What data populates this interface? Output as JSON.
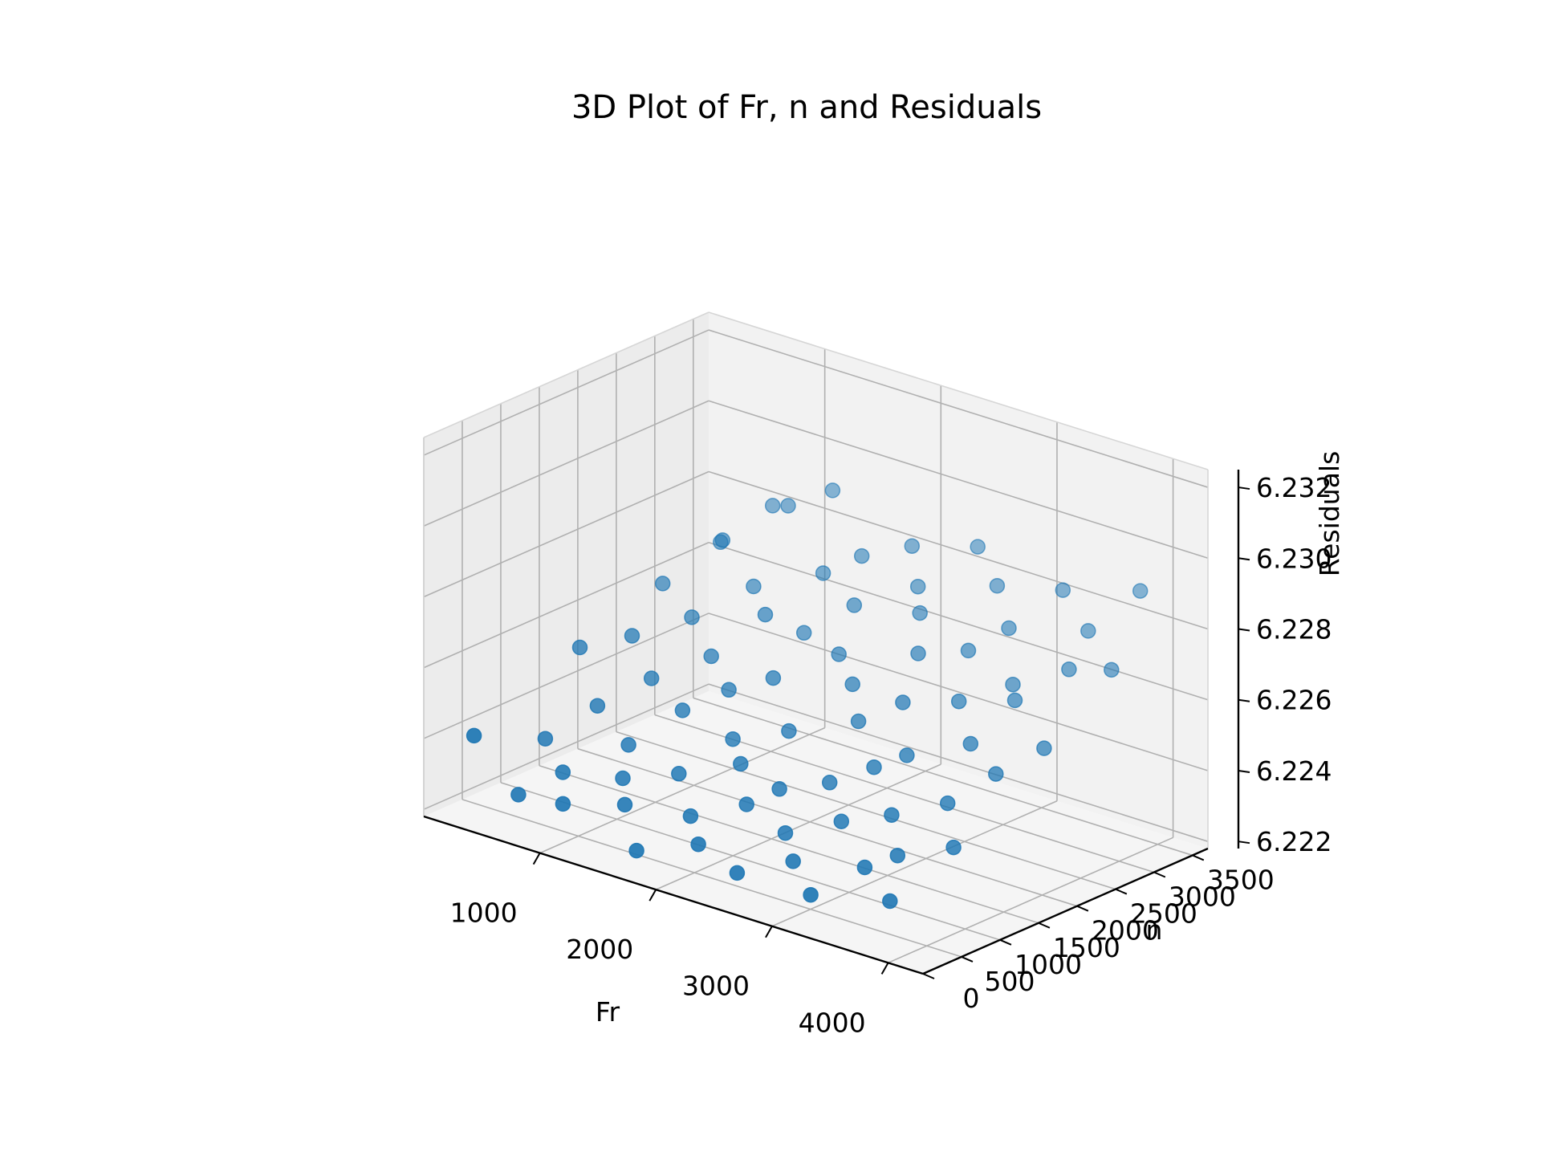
{
  "chart_data": {
    "type": "scatter3d",
    "title": "3D Plot of Fr, n and Residuals",
    "xlabel": "Fr",
    "ylabel": "n",
    "zlabel": "Residuals",
    "x_ticks": [
      "1000",
      "2000",
      "3000",
      "4000"
    ],
    "y_ticks": [
      "0",
      "500",
      "1000",
      "1500",
      "2000",
      "2500",
      "3000",
      "3500"
    ],
    "z_ticks": [
      "6.222",
      "6.224",
      "6.226",
      "6.228",
      "6.230",
      "6.232"
    ],
    "xlim": [
      0,
      4300
    ],
    "ylim": [
      0,
      3700
    ],
    "zlim": [
      6.2218,
      6.2325
    ],
    "grid": true,
    "marker_color": "#1f77b4",
    "pane_color": "#f2f2f2",
    "grid_color": "#b0b0b0",
    "points": [
      [
        300,
        200,
        6.2242
      ],
      [
        350,
        1500,
        6.2255
      ],
      [
        400,
        2500,
        6.2264
      ],
      [
        450,
        900,
        6.2236
      ],
      [
        500,
        3100,
        6.2271
      ],
      [
        550,
        400,
        6.2226
      ],
      [
        600,
        1800,
        6.2258
      ],
      [
        650,
        2900,
        6.2275
      ],
      [
        700,
        1200,
        6.2245
      ],
      [
        750,
        3400,
        6.2281
      ],
      [
        800,
        600,
        6.2233
      ],
      [
        850,
        2200,
        6.2262
      ],
      [
        900,
        1600,
        6.2251
      ],
      [
        950,
        3300,
        6.2284
      ],
      [
        1000,
        300,
        6.2229
      ],
      [
        1050,
        2700,
        6.2268
      ],
      [
        1100,
        1000,
        6.224
      ],
      [
        1150,
        2000,
        6.2256
      ],
      [
        1200,
        3500,
        6.2289
      ],
      [
        1250,
        700,
        6.2235
      ],
      [
        1300,
        1400,
        6.2248
      ],
      [
        1350,
        2400,
        6.2266
      ],
      [
        1400,
        500,
        6.2231
      ],
      [
        1450,
        3000,
        6.2273
      ],
      [
        1500,
        1700,
        6.2253
      ],
      [
        1550,
        2600,
        6.2261
      ],
      [
        1600,
        900,
        6.2238
      ],
      [
        1650,
        3200,
        6.2278
      ],
      [
        1700,
        200,
        6.2224
      ],
      [
        1750,
        1900,
        6.2257
      ],
      [
        1800,
        1300,
        6.2246
      ],
      [
        1850,
        2800,
        6.227
      ],
      [
        1900,
        600,
        6.2232
      ],
      [
        1950,
        3400,
        6.2282
      ],
      [
        2000,
        1100,
        6.2243
      ],
      [
        2050,
        2300,
        6.2263
      ],
      [
        2100,
        400,
        6.2228
      ],
      [
        2150,
        1500,
        6.225
      ],
      [
        2200,
        3100,
        6.2276
      ],
      [
        2250,
        800,
        6.2237
      ],
      [
        2300,
        2100,
        6.2259
      ],
      [
        2350,
        2900,
        6.2272
      ],
      [
        2400,
        1000,
        6.2241
      ],
      [
        2450,
        3500,
        6.2286
      ],
      [
        2500,
        300,
        6.2225
      ],
      [
        2550,
        1800,
        6.2254
      ],
      [
        2600,
        2500,
        6.2267
      ],
      [
        2650,
        700,
        6.2234
      ],
      [
        2700,
        1200,
        6.2244
      ],
      [
        2750,
        3300,
        6.228
      ],
      [
        2800,
        2000,
        6.226
      ],
      [
        2850,
        500,
        6.223
      ],
      [
        2900,
        2700,
        6.2269
      ],
      [
        2950,
        1400,
        6.2249
      ],
      [
        3000,
        900,
        6.2239
      ],
      [
        3050,
        3000,
        6.2274
      ],
      [
        3100,
        1600,
        6.2252
      ],
      [
        3150,
        2200,
        6.2262
      ],
      [
        3200,
        200,
        6.2227
      ],
      [
        3250,
        3400,
        6.2283
      ],
      [
        3300,
        1100,
        6.2242
      ],
      [
        3350,
        2600,
        6.2265
      ],
      [
        3400,
        600,
        6.2233
      ],
      [
        3450,
        1900,
        6.2256
      ],
      [
        3500,
        2400,
        6.2264
      ],
      [
        3550,
        800,
        6.2236
      ],
      [
        3600,
        3200,
        6.2277
      ],
      [
        3650,
        1300,
        6.2247
      ],
      [
        3700,
        2800,
        6.2271
      ],
      [
        3750,
        400,
        6.2229
      ],
      [
        3800,
        1700,
        6.2253
      ],
      [
        3850,
        3500,
        6.2288
      ],
      [
        3900,
        1000,
        6.224
      ],
      [
        3950,
        2100,
        6.2258
      ],
      [
        4000,
        2900,
        6.2273
      ]
    ]
  }
}
